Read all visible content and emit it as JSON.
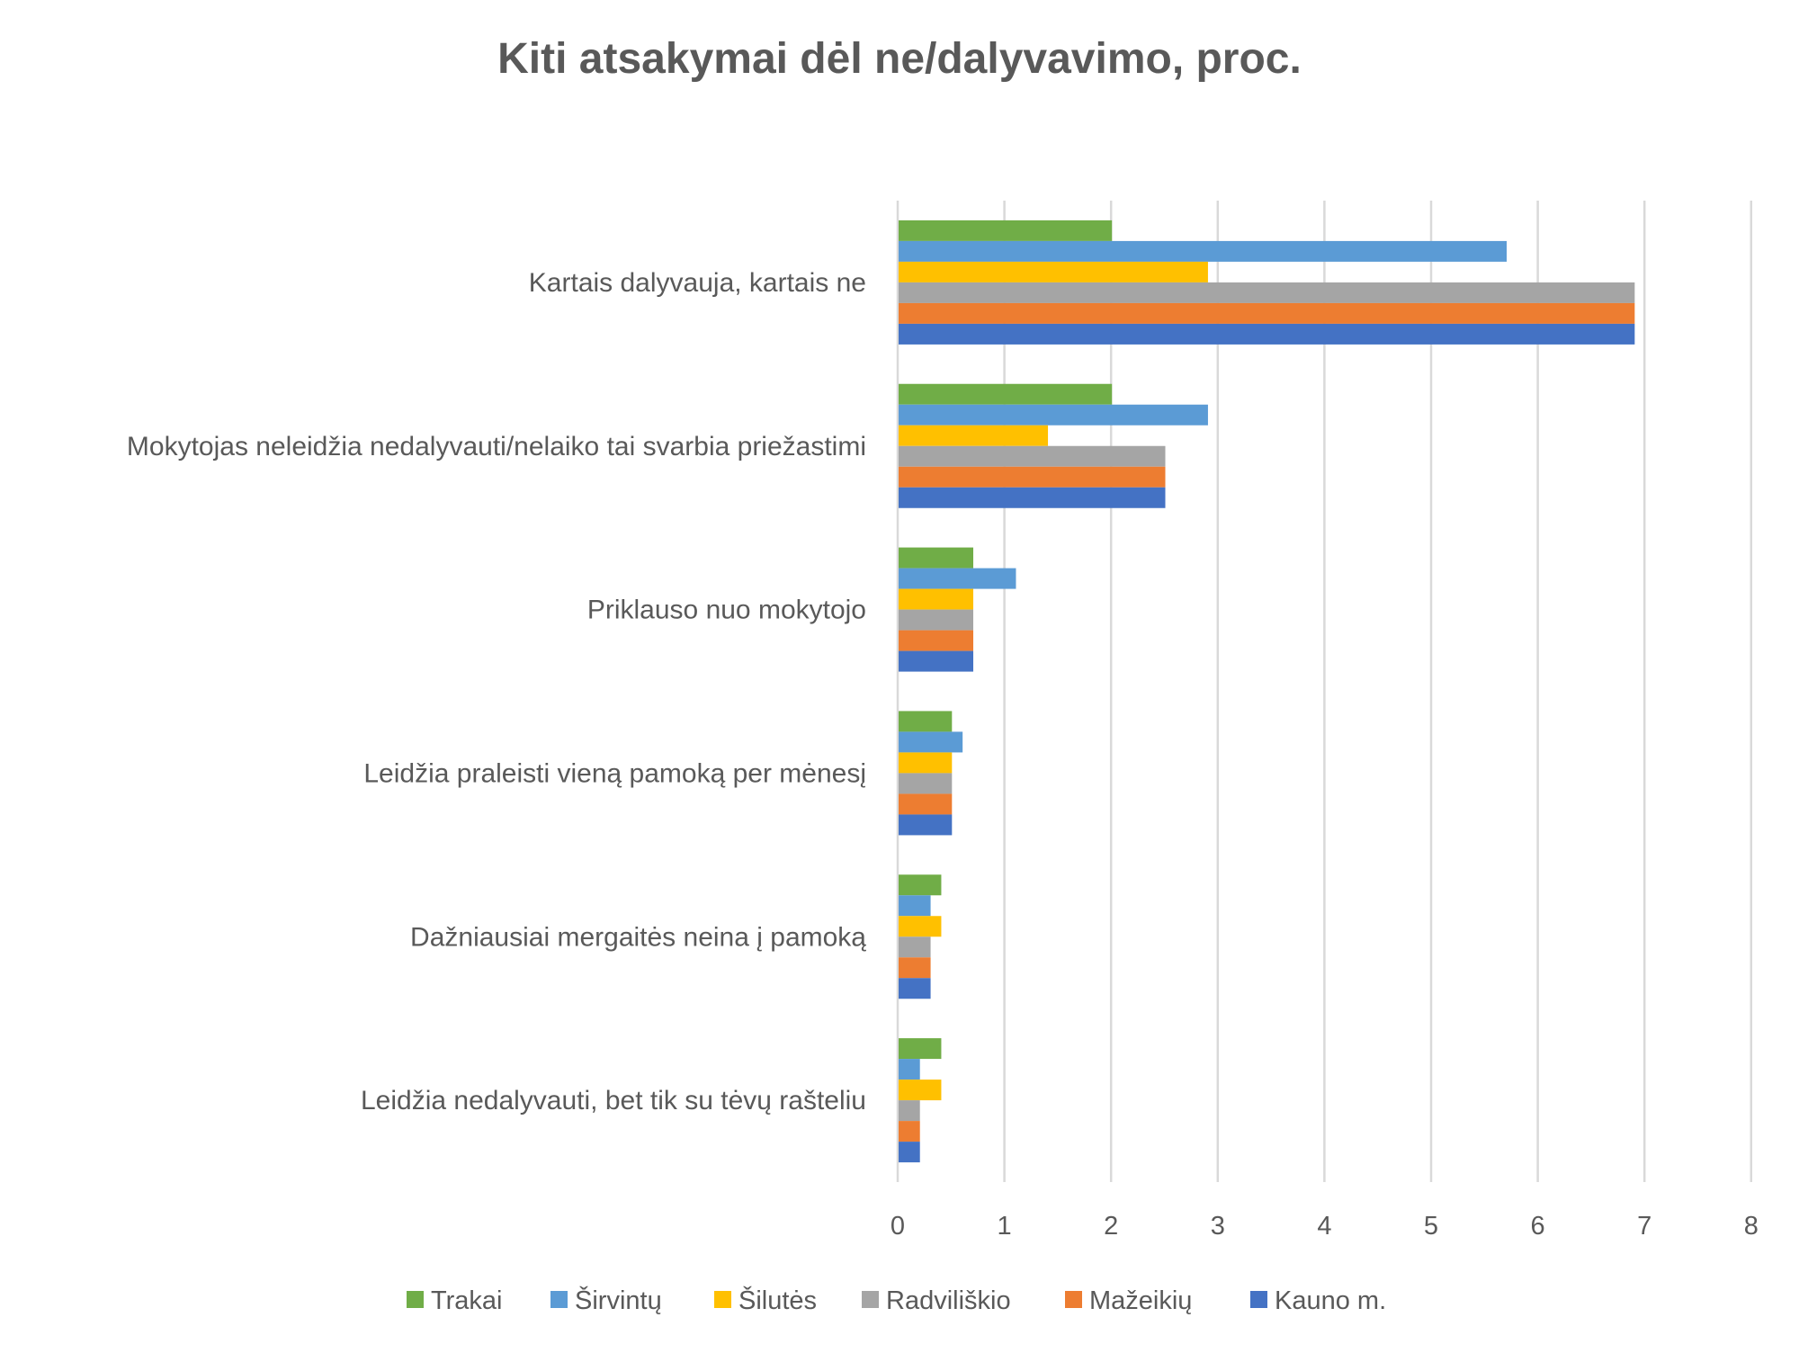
{
  "chart_data": {
    "type": "bar",
    "orientation": "horizontal",
    "title": "Kiti atsakymai dėl ne/dalyvavimo, proc.",
    "xlabel": "",
    "ylabel": "",
    "xlim": [
      0,
      8
    ],
    "xticks": [
      "0",
      "1",
      "2",
      "3",
      "4",
      "5",
      "6",
      "7",
      "8"
    ],
    "grid": true,
    "legend_position": "bottom",
    "categories": [
      "Kartais dalyvauja, kartais ne",
      "Mokytojas neleidžia nedalyvauti/nelaiko tai svarbia priežastimi",
      "Priklauso nuo mokytojo",
      "Leidžia praleisti vieną pamoką per mėnesį",
      "Dažniausiai mergaitės neina į pamoką",
      "Leidžia nedalyvauti, bet tik su tėvų rašteliu"
    ],
    "series": [
      {
        "name": "Trakai",
        "color": "#70AD47",
        "values": [
          2,
          2,
          0.7,
          0.5,
          0.4,
          0.4
        ]
      },
      {
        "name": "Širvintų",
        "color": "#5B9BD5",
        "values": [
          5.7,
          2.9,
          1.1,
          0.6,
          0.3,
          0.2
        ]
      },
      {
        "name": "Šilutės",
        "color": "#FFC000",
        "values": [
          2.9,
          1.4,
          0.7,
          0.5,
          0.4,
          0.4
        ]
      },
      {
        "name": "Radviliškio",
        "color": "#A5A5A5",
        "values": [
          6.9,
          2.5,
          0.7,
          0.5,
          0.3,
          0.2
        ]
      },
      {
        "name": "Mažeikių",
        "color": "#ED7D31",
        "values": [
          6.9,
          2.5,
          0.7,
          0.5,
          0.3,
          0.2
        ]
      },
      {
        "name": "Kauno m.",
        "color": "#4472C4",
        "values": [
          6.9,
          2.5,
          0.7,
          0.5,
          0.3,
          0.2
        ]
      }
    ]
  }
}
